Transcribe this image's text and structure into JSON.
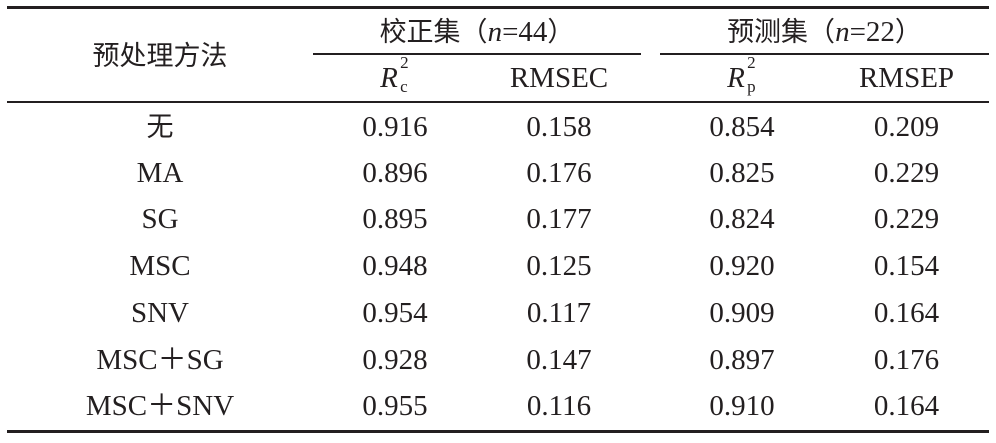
{
  "table": {
    "header": {
      "method": "预处理方法",
      "calibration": {
        "prefix": "校正集（",
        "n_symbol": "n",
        "n_value": "=44",
        "suffix": "）"
      },
      "prediction": {
        "prefix": "预测集（",
        "n_symbol": "n",
        "n_value": "=22",
        "suffix": "）"
      },
      "rc": {
        "base": "R",
        "sup": "2",
        "sub": "c"
      },
      "rmsec": "RMSEC",
      "rp": {
        "base": "R",
        "sup": "2",
        "sub": "p"
      },
      "rmsep": "RMSEP"
    },
    "rows": [
      {
        "method": "无",
        "rc2": "0.916",
        "rmsec": "0.158",
        "rp2": "0.854",
        "rmsep": "0.209"
      },
      {
        "method": "MA",
        "rc2": "0.896",
        "rmsec": "0.176",
        "rp2": "0.825",
        "rmsep": "0.229"
      },
      {
        "method": "SG",
        "rc2": "0.895",
        "rmsec": "0.177",
        "rp2": "0.824",
        "rmsep": "0.229"
      },
      {
        "method": "MSC",
        "rc2": "0.948",
        "rmsec": "0.125",
        "rp2": "0.920",
        "rmsep": "0.154"
      },
      {
        "method": "SNV",
        "rc2": "0.954",
        "rmsec": "0.117",
        "rp2": "0.909",
        "rmsep": "0.164"
      },
      {
        "method": "MSC＋SG",
        "rc2": "0.928",
        "rmsec": "0.147",
        "rp2": "0.897",
        "rmsep": "0.176"
      },
      {
        "method": "MSC＋SNV",
        "rc2": "0.955",
        "rmsec": "0.116",
        "rp2": "0.910",
        "rmsep": "0.164"
      }
    ]
  }
}
